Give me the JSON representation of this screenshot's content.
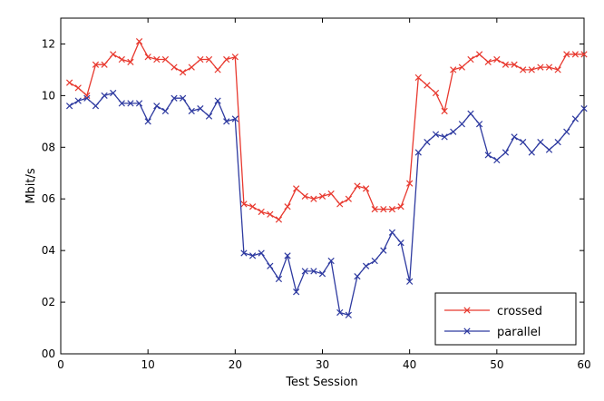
{
  "chart_data": {
    "type": "line",
    "xlabel": "Test Session",
    "ylabel": "Mbit/s",
    "xlim": [
      0,
      60
    ],
    "ylim": [
      0,
      1.3
    ],
    "xticks": [
      0,
      10,
      20,
      30,
      40,
      50,
      60
    ],
    "xtick_labels": [
      "0",
      "10",
      "20",
      "30",
      "40",
      "50",
      "60"
    ],
    "yticks": [
      0,
      0.2,
      0.4,
      0.6,
      0.8,
      1.0,
      1.2
    ],
    "ytick_labels": [
      "00",
      "02",
      "04",
      "06",
      "08",
      "10",
      "12"
    ],
    "grid": false,
    "legend_position": "bottom-right",
    "x": [
      1,
      2,
      3,
      4,
      5,
      6,
      7,
      8,
      9,
      10,
      11,
      12,
      13,
      14,
      15,
      16,
      17,
      18,
      19,
      20,
      21,
      22,
      23,
      24,
      25,
      26,
      27,
      28,
      29,
      30,
      31,
      32,
      33,
      34,
      35,
      36,
      37,
      38,
      39,
      40,
      41,
      42,
      43,
      44,
      45,
      46,
      47,
      48,
      49,
      50,
      51,
      52,
      53,
      54,
      55,
      56,
      57,
      58,
      59,
      60
    ],
    "series": [
      {
        "name": "crossed",
        "color": "#e8392f",
        "marker": "x",
        "values": [
          1.05,
          1.03,
          1.0,
          1.12,
          1.12,
          1.16,
          1.14,
          1.13,
          1.21,
          1.15,
          1.14,
          1.14,
          1.11,
          1.09,
          1.11,
          1.14,
          1.14,
          1.1,
          1.14,
          1.15,
          0.58,
          0.57,
          0.55,
          0.54,
          0.52,
          0.57,
          0.64,
          0.61,
          0.6,
          0.61,
          0.62,
          0.58,
          0.6,
          0.65,
          0.64,
          0.56,
          0.56,
          0.56,
          0.57,
          0.66,
          1.07,
          1.04,
          1.01,
          0.94,
          1.1,
          1.11,
          1.14,
          1.16,
          1.13,
          1.14,
          1.12,
          1.12,
          1.1,
          1.1,
          1.11,
          1.11,
          1.1,
          1.16,
          1.16,
          1.16
        ]
      },
      {
        "name": "parallel",
        "color": "#2e3aa0",
        "marker": "x",
        "values": [
          0.96,
          0.98,
          0.99,
          0.96,
          1.0,
          1.01,
          0.97,
          0.97,
          0.97,
          0.9,
          0.96,
          0.94,
          0.99,
          0.99,
          0.94,
          0.95,
          0.92,
          0.98,
          0.9,
          0.91,
          0.39,
          0.38,
          0.39,
          0.34,
          0.29,
          0.38,
          0.24,
          0.32,
          0.32,
          0.31,
          0.36,
          0.16,
          0.15,
          0.3,
          0.34,
          0.36,
          0.4,
          0.47,
          0.43,
          0.28,
          0.78,
          0.82,
          0.85,
          0.84,
          0.86,
          0.89,
          0.93,
          0.89,
          0.77,
          0.75,
          0.78,
          0.84,
          0.82,
          0.78,
          0.82,
          0.79,
          0.82,
          0.86,
          0.91,
          0.95
        ]
      }
    ]
  }
}
